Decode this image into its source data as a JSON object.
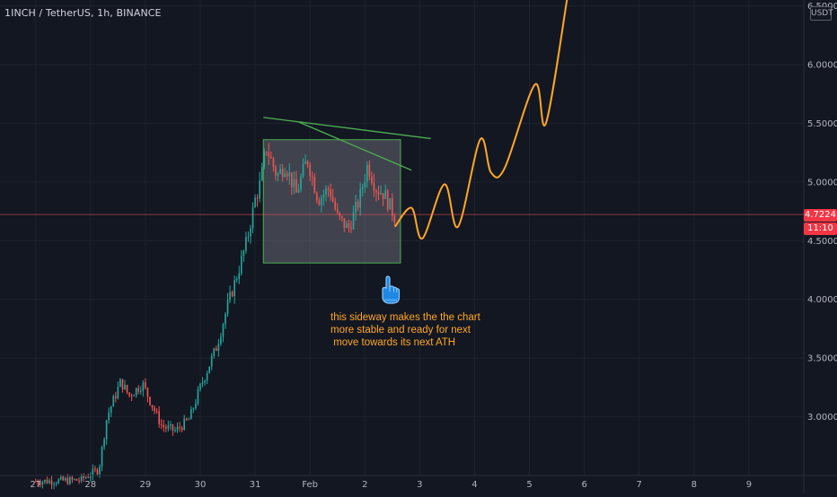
{
  "header": {
    "symbol_title": "1INCH / TetherUS, 1h, BINANCE",
    "currency": "USDT"
  },
  "price_tags": {
    "last_price": "4.7224",
    "countdown": "11:10",
    "color": "#f23645"
  },
  "annotation": {
    "lines": [
      "this sideway makes the the chart",
      "more stable and ready for next",
      " move towards its next ATH"
    ],
    "color": "#ffa726",
    "icon": "pointing-up-hand-icon"
  },
  "colors": {
    "background": "#131722",
    "grid": "#1e222d",
    "up_candle": "#26a69a",
    "down_candle": "#ef5350",
    "trendline": "#4caf50",
    "projection": "#ffa726",
    "box_fill": "#787b86"
  },
  "chart_data": {
    "type": "candlestick",
    "symbol": "1INCH/USDT",
    "interval": "1h",
    "exchange": "BINANCE",
    "y_axis": {
      "ticks": [
        "3.0000",
        "3.5000",
        "4.0000",
        "4.5000",
        "5.0000",
        "5.5000",
        "6.0000",
        "6.5000"
      ],
      "tick_values": [
        3.0,
        3.5,
        4.0,
        4.5,
        5.0,
        5.5,
        6.0,
        6.5
      ],
      "range": [
        2.5,
        6.55
      ]
    },
    "x_axis": {
      "ticks": [
        "27",
        "28",
        "29",
        "30",
        "31",
        "Feb",
        "2",
        "3",
        "4",
        "5",
        "6",
        "7",
        "8",
        "9"
      ],
      "tick_days": [
        27,
        28,
        29,
        30,
        31,
        32,
        33,
        34,
        35,
        36,
        37,
        38,
        39,
        40
      ],
      "range": [
        26.35,
        41.0
      ]
    },
    "last_price": 4.7224,
    "price_segments": [
      [
        27.0,
        2.45
      ],
      [
        27.8,
        2.46
      ],
      [
        28.15,
        2.55
      ],
      [
        28.3,
        3.0
      ],
      [
        28.55,
        3.3
      ],
      [
        28.7,
        3.18
      ],
      [
        28.95,
        3.28
      ],
      [
        29.1,
        3.12
      ],
      [
        29.3,
        2.92
      ],
      [
        29.55,
        2.88
      ],
      [
        29.8,
        2.98
      ],
      [
        30.0,
        3.25
      ],
      [
        30.3,
        3.6
      ],
      [
        30.5,
        3.95
      ],
      [
        30.7,
        4.25
      ],
      [
        30.85,
        4.5
      ],
      [
        31.0,
        4.85
      ],
      [
        31.1,
        5.0
      ],
      [
        31.2,
        5.3
      ],
      [
        31.4,
        5.05
      ],
      [
        31.55,
        5.15
      ],
      [
        31.75,
        4.9
      ],
      [
        31.95,
        5.2
      ],
      [
        32.15,
        4.85
      ],
      [
        32.35,
        4.95
      ],
      [
        32.5,
        4.7
      ],
      [
        32.7,
        4.6
      ],
      [
        32.9,
        4.85
      ],
      [
        33.05,
        5.15
      ],
      [
        33.2,
        4.95
      ],
      [
        33.35,
        4.9
      ],
      [
        33.45,
        4.8
      ],
      [
        33.55,
        4.7
      ]
    ],
    "sideways_box": {
      "x": [
        31.15,
        33.65
      ],
      "y": [
        4.31,
        5.36
      ]
    },
    "trendlines": [
      {
        "from": [
          31.15,
          5.55
        ],
        "to": [
          34.2,
          5.37
        ]
      },
      {
        "from": [
          31.8,
          5.51
        ],
        "to": [
          33.85,
          5.1
        ]
      }
    ],
    "projection_path": [
      [
        33.55,
        4.62
      ],
      [
        33.85,
        4.78
      ],
      [
        34.05,
        4.52
      ],
      [
        34.45,
        4.98
      ],
      [
        34.7,
        4.62
      ],
      [
        35.1,
        5.36
      ],
      [
        35.3,
        5.08
      ],
      [
        35.55,
        5.12
      ],
      [
        36.1,
        5.83
      ],
      [
        36.3,
        5.5
      ],
      [
        36.7,
        6.6
      ]
    ]
  }
}
